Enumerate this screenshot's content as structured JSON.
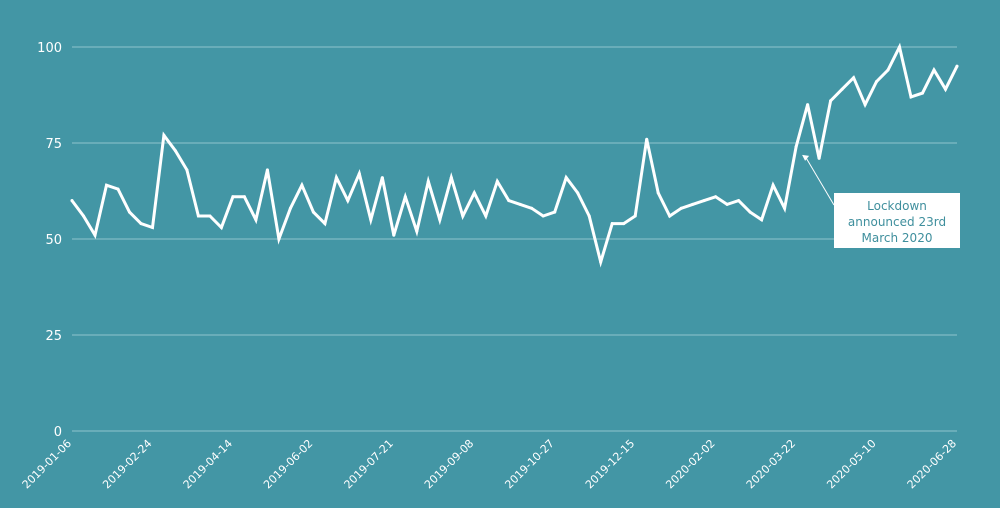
{
  "colors": {
    "background": "#4396a5",
    "line": "#ffffff",
    "grid": "#8fc4cd",
    "annotation_text": "#3f8f9d"
  },
  "chart_data": {
    "type": "line",
    "title": "",
    "xlabel": "",
    "ylabel": "",
    "ylim": [
      0,
      100
    ],
    "yticks": [
      0,
      25,
      50,
      75,
      100
    ],
    "grid": "horizontal",
    "x_start": "2019-01-06",
    "x_step_days": 7,
    "xtick_labels": [
      "2019-01-06",
      "2019-02-24",
      "2019-04-14",
      "2019-06-02",
      "2019-07-21",
      "2019-09-08",
      "2019-10-27",
      "2019-12-15",
      "2020-02-02",
      "2020-03-22",
      "2020-05-10",
      "2020-06-28"
    ],
    "series": [
      {
        "name": "",
        "values": [
          60,
          56,
          51,
          64,
          63,
          57,
          54,
          53,
          77,
          73,
          68,
          56,
          56,
          53,
          61,
          61,
          55,
          68,
          50,
          58,
          64,
          57,
          54,
          66,
          60,
          67,
          55,
          66,
          51,
          61,
          52,
          65,
          55,
          66,
          56,
          62,
          56,
          65,
          60,
          59,
          58,
          56,
          57,
          66,
          62,
          56,
          44,
          54,
          54,
          56,
          76,
          62,
          56,
          58,
          59,
          60,
          61,
          59,
          60,
          57,
          55,
          64,
          58,
          74,
          85,
          71,
          86,
          89,
          92,
          85,
          91,
          94,
          100,
          87,
          88,
          94,
          89,
          95
        ]
      }
    ],
    "annotations": [
      {
        "lines": [
          "Lockdown",
          "announced 23rd",
          "March 2020"
        ],
        "target_date": "2020-03-22"
      }
    ]
  }
}
